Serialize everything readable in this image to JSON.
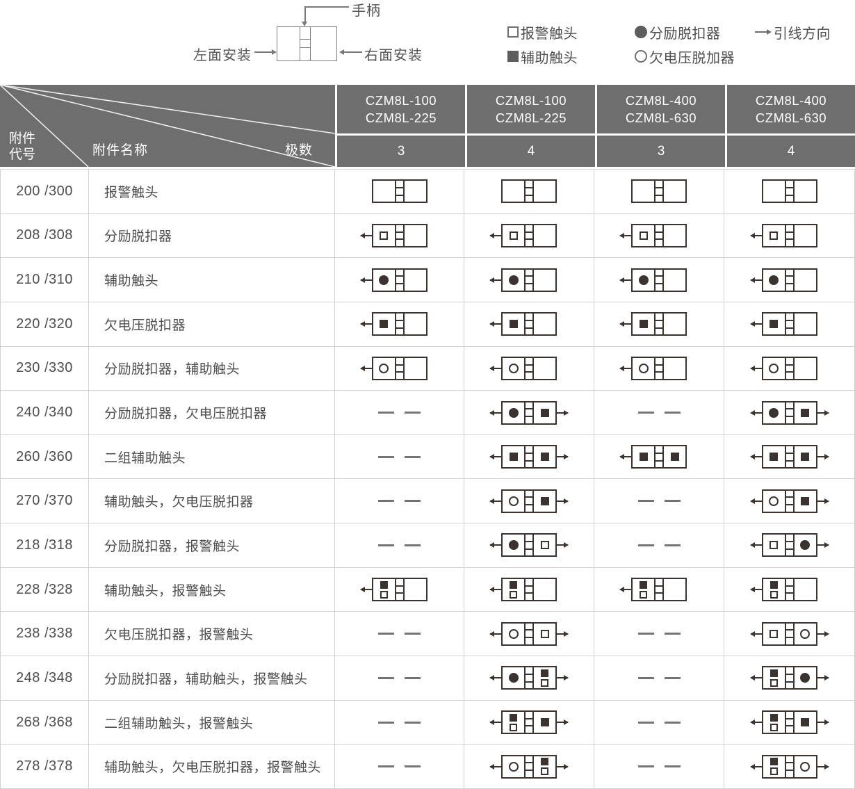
{
  "top": {
    "handle_label": "手柄",
    "left_mount_label": "左面安装",
    "right_mount_label": "右面安装"
  },
  "legend": {
    "items": [
      {
        "symbol": "sq-open",
        "label": "报警触头"
      },
      {
        "symbol": "circ-filled",
        "label": "分励脱扣器"
      },
      {
        "symbol": "arrow-right",
        "label": "引线方向"
      },
      {
        "symbol": "sq-filled",
        "label": "辅助触头"
      },
      {
        "symbol": "circ-open",
        "label": "欠电压脱加器"
      }
    ]
  },
  "colors": {
    "header_bg": "#6e6e6e",
    "header_text": "#ffffff",
    "body_text": "#4d4d4d",
    "grid_line": "#d2d2d2",
    "icon_stroke": "#3a332f"
  },
  "table": {
    "corner": {
      "code_lines": [
        "附件",
        "代号"
      ],
      "name_label": "附件名称",
      "poles_label": "极数"
    },
    "columns": [
      {
        "models": [
          "CZM8L-100",
          "CZM8L-225"
        ],
        "poles": "3"
      },
      {
        "models": [
          "CZM8L-100",
          "CZM8L-225"
        ],
        "poles": "4"
      },
      {
        "models": [
          "CZM8L-400",
          "CZM8L-630"
        ],
        "poles": "3"
      },
      {
        "models": [
          "CZM8L-400",
          "CZM8L-630"
        ],
        "poles": "4"
      }
    ],
    "rows": [
      {
        "code": "200 /300",
        "name": "报警触头",
        "cells": [
          {
            "type": "breaker",
            "left": [],
            "right": [],
            "arrows": []
          },
          {
            "type": "breaker",
            "left": [],
            "right": [],
            "arrows": []
          },
          {
            "type": "breaker",
            "left": [],
            "right": [],
            "arrows": []
          },
          {
            "type": "breaker",
            "left": [],
            "right": [],
            "arrows": []
          }
        ]
      },
      {
        "code": "208 /308",
        "name": "分励脱扣器",
        "cells": [
          {
            "type": "breaker",
            "left": [
              "sq-open"
            ],
            "right": [],
            "arrows": [
              "left"
            ]
          },
          {
            "type": "breaker",
            "left": [
              "sq-open"
            ],
            "right": [],
            "arrows": [
              "left"
            ]
          },
          {
            "type": "breaker",
            "left": [
              "sq-open"
            ],
            "right": [],
            "arrows": [
              "left"
            ]
          },
          {
            "type": "breaker",
            "left": [
              "sq-open"
            ],
            "right": [],
            "arrows": [
              "left"
            ]
          }
        ]
      },
      {
        "code": "210 /310",
        "name": "辅助触头",
        "cells": [
          {
            "type": "breaker",
            "left": [
              "circ-filled"
            ],
            "right": [],
            "arrows": [
              "left"
            ]
          },
          {
            "type": "breaker",
            "left": [
              "circ-filled"
            ],
            "right": [],
            "arrows": [
              "left"
            ]
          },
          {
            "type": "breaker",
            "left": [
              "circ-filled"
            ],
            "right": [],
            "arrows": [
              "left"
            ]
          },
          {
            "type": "breaker",
            "left": [
              "circ-filled"
            ],
            "right": [],
            "arrows": [
              "left"
            ]
          }
        ]
      },
      {
        "code": "220 /320",
        "name": "欠电压脱扣器",
        "cells": [
          {
            "type": "breaker",
            "left": [
              "sq-filled"
            ],
            "right": [],
            "arrows": [
              "left"
            ]
          },
          {
            "type": "breaker",
            "left": [
              "sq-filled"
            ],
            "right": [],
            "arrows": [
              "left"
            ]
          },
          {
            "type": "breaker",
            "left": [
              "sq-filled"
            ],
            "right": [],
            "arrows": [
              "left"
            ]
          },
          {
            "type": "breaker",
            "left": [
              "sq-filled"
            ],
            "right": [],
            "arrows": [
              "left"
            ]
          }
        ]
      },
      {
        "code": "230 /330",
        "name": "分励脱扣器，辅助触头",
        "cells": [
          {
            "type": "breaker",
            "left": [
              "circ-open"
            ],
            "right": [],
            "arrows": [
              "left"
            ]
          },
          {
            "type": "breaker",
            "left": [
              "circ-open"
            ],
            "right": [],
            "arrows": [
              "left"
            ]
          },
          {
            "type": "breaker",
            "left": [
              "circ-open"
            ],
            "right": [],
            "arrows": [
              "left"
            ]
          },
          {
            "type": "breaker",
            "left": [
              "circ-open"
            ],
            "right": [],
            "arrows": [
              "left"
            ]
          }
        ]
      },
      {
        "code": "240 /340",
        "name": "分励脱扣器，欠电压脱扣器",
        "cells": [
          {
            "type": "dash"
          },
          {
            "type": "breaker",
            "left": [
              "circ-filled"
            ],
            "right": [
              "sq-filled"
            ],
            "arrows": [
              "left",
              "right"
            ]
          },
          {
            "type": "dash"
          },
          {
            "type": "breaker",
            "left": [
              "circ-filled"
            ],
            "right": [
              "sq-filled"
            ],
            "arrows": [
              "left",
              "right"
            ]
          }
        ]
      },
      {
        "code": "260 /360",
        "name": "二组辅助触头",
        "cells": [
          {
            "type": "dash"
          },
          {
            "type": "breaker",
            "left": [
              "sq-filled"
            ],
            "right": [
              "sq-filled"
            ],
            "arrows": [
              "left",
              "right"
            ]
          },
          {
            "type": "breaker",
            "left": [
              "sq-filled"
            ],
            "right": [
              "sq-filled"
            ],
            "arrows": [
              "left"
            ]
          },
          {
            "type": "breaker",
            "left": [
              "sq-filled"
            ],
            "right": [
              "sq-filled"
            ],
            "arrows": [
              "left",
              "right"
            ]
          }
        ]
      },
      {
        "code": "270 /370",
        "name": "辅助触头，欠电压脱扣器",
        "cells": [
          {
            "type": "dash"
          },
          {
            "type": "breaker",
            "left": [
              "circ-open"
            ],
            "right": [
              "sq-filled"
            ],
            "arrows": [
              "left",
              "right"
            ]
          },
          {
            "type": "dash"
          },
          {
            "type": "breaker",
            "left": [
              "circ-open"
            ],
            "right": [
              "sq-filled"
            ],
            "arrows": [
              "left",
              "right"
            ]
          }
        ]
      },
      {
        "code": "218 /318",
        "name": "分励脱扣器，报警触头",
        "cells": [
          {
            "type": "dash"
          },
          {
            "type": "breaker",
            "left": [
              "circ-filled"
            ],
            "right": [
              "sq-open"
            ],
            "arrows": [
              "left",
              "right"
            ]
          },
          {
            "type": "dash"
          },
          {
            "type": "breaker",
            "left": [
              "sq-open"
            ],
            "right": [
              "circ-filled"
            ],
            "arrows": [
              "left",
              "right"
            ]
          }
        ]
      },
      {
        "code": "228 /328",
        "name": "辅助触头，报警触头",
        "cells": [
          {
            "type": "breaker",
            "left": [
              "sq-filled",
              "sq-open"
            ],
            "right": [],
            "arrows": [
              "left"
            ]
          },
          {
            "type": "breaker",
            "left": [
              "sq-filled",
              "sq-open"
            ],
            "right": [],
            "arrows": [
              "left"
            ]
          },
          {
            "type": "breaker",
            "left": [
              "sq-filled",
              "sq-open"
            ],
            "right": [],
            "arrows": [
              "left"
            ]
          },
          {
            "type": "breaker",
            "left": [
              "sq-filled",
              "sq-open"
            ],
            "right": [],
            "arrows": [
              "left"
            ]
          }
        ]
      },
      {
        "code": "238 /338",
        "name": "欠电压脱扣器，报警触头",
        "cells": [
          {
            "type": "dash"
          },
          {
            "type": "breaker",
            "left": [
              "circ-open"
            ],
            "right": [
              "sq-open"
            ],
            "arrows": [
              "left",
              "right"
            ]
          },
          {
            "type": "dash"
          },
          {
            "type": "breaker",
            "left": [
              "sq-open"
            ],
            "right": [
              "circ-open"
            ],
            "arrows": [
              "left",
              "right"
            ]
          }
        ]
      },
      {
        "code": "248 /348",
        "name": "分励脱扣器，辅助触头，报警触头",
        "cells": [
          {
            "type": "dash"
          },
          {
            "type": "breaker",
            "left": [
              "circ-filled"
            ],
            "right": [
              "sq-filled",
              "sq-open"
            ],
            "arrows": [
              "left",
              "right"
            ]
          },
          {
            "type": "dash"
          },
          {
            "type": "breaker",
            "left": [
              "sq-filled",
              "sq-open"
            ],
            "right": [
              "circ-filled"
            ],
            "arrows": [
              "left",
              "right"
            ]
          }
        ]
      },
      {
        "code": "268 /368",
        "name": "二组辅助触头，报警触头",
        "cells": [
          {
            "type": "dash"
          },
          {
            "type": "breaker",
            "left": [
              "sq-filled",
              "sq-open"
            ],
            "right": [
              "sq-filled"
            ],
            "arrows": [
              "left",
              "right"
            ]
          },
          {
            "type": "dash"
          },
          {
            "type": "breaker",
            "left": [
              "sq-filled",
              "sq-open"
            ],
            "right": [
              "sq-filled"
            ],
            "arrows": [
              "left",
              "right"
            ]
          }
        ]
      },
      {
        "code": "278 /378",
        "name": "辅助触头，欠电压脱扣器，报警触头",
        "cells": [
          {
            "type": "dash"
          },
          {
            "type": "breaker",
            "left": [
              "circ-open"
            ],
            "right": [
              "sq-filled",
              "sq-open"
            ],
            "arrows": [
              "left",
              "right"
            ]
          },
          {
            "type": "dash"
          },
          {
            "type": "breaker",
            "left": [
              "sq-filled",
              "sq-open"
            ],
            "right": [
              "circ-open"
            ],
            "arrows": [
              "left",
              "right"
            ]
          }
        ]
      }
    ]
  }
}
